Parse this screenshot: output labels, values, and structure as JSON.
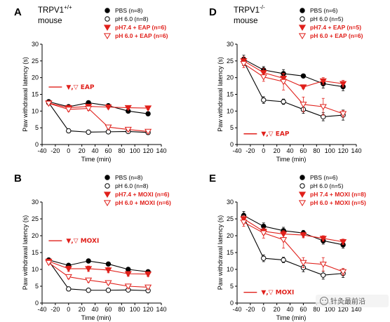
{
  "colors": {
    "black": "#000000",
    "red": "#e0201b",
    "wm_bg": "#f2f2f2"
  },
  "watermark_text": "针灸最前沿",
  "chart_data": [
    {
      "type": "line",
      "panel": "A",
      "title_line1": "TRPV1",
      "title_sup": "+/+",
      "title_line2": "mouse",
      "xlabel": "Time (min)",
      "ylabel": "Paw withdrawal latency (s)",
      "xlim": [
        -40,
        140
      ],
      "ylim": [
        0,
        30
      ],
      "x_ticks": [
        -40,
        -20,
        0,
        20,
        40,
        60,
        80,
        100,
        120,
        140
      ],
      "y_ticks": [
        0,
        5,
        10,
        15,
        20,
        25,
        30
      ],
      "x": [
        -30,
        0,
        30,
        60,
        90,
        120
      ],
      "treatment": {
        "symbols": "▼,▽",
        "label": "EAP",
        "x_start": -30,
        "x_end": -10
      },
      "legend_position": "top-right",
      "series": [
        {
          "name": "PBS (n=8)",
          "marker": "filled-circle",
          "color": "#000000",
          "values": [
            12.8,
            11.3,
            12.5,
            11.6,
            10.0,
            9.2
          ],
          "err": [
            0.5,
            0.5,
            0.5,
            0.5,
            0.5,
            0.6
          ]
        },
        {
          "name": "pH 6.0 (n=8)",
          "marker": "open-circle",
          "color": "#000000",
          "values": [
            12.5,
            4.1,
            3.7,
            3.8,
            3.9,
            3.6
          ],
          "err": [
            0.5,
            0.3,
            0.3,
            0.3,
            0.3,
            0.3
          ]
        },
        {
          "name": "pH7.4 + EAP (n=6)",
          "marker": "filled-triangle-down",
          "color": "#e0201b",
          "values": [
            12.4,
            11.0,
            11.4,
            11.2,
            11.0,
            10.9
          ],
          "err": [
            0.5,
            0.5,
            0.5,
            0.5,
            0.5,
            0.5
          ]
        },
        {
          "name": "pH 6.0 + EAP (n=6)",
          "marker": "open-triangle-down",
          "color": "#e0201b",
          "values": [
            12.3,
            10.5,
            10.8,
            5.2,
            4.5,
            3.9
          ],
          "err": [
            0.5,
            0.6,
            0.6,
            0.5,
            0.5,
            0.4
          ]
        }
      ]
    },
    {
      "type": "line",
      "panel": "D",
      "title_line1": "TRPV1",
      "title_sup": "-/-",
      "title_line2": "mouse",
      "xlabel": "Time (min)",
      "ylabel": "Paw withdrawal latency (s)",
      "xlim": [
        -40,
        140
      ],
      "ylim": [
        0,
        30
      ],
      "x_ticks": [
        -40,
        -20,
        0,
        20,
        40,
        60,
        80,
        100,
        120,
        140
      ],
      "y_ticks": [
        0,
        5,
        10,
        15,
        20,
        25,
        30
      ],
      "x": [
        -30,
        0,
        30,
        60,
        90,
        120
      ],
      "treatment": {
        "symbols": "▼,▽",
        "label": "EAP",
        "x_start": -30,
        "x_end": -10
      },
      "legend_position": "top-right",
      "series": [
        {
          "name": "PBS (n=6)",
          "marker": "filled-circle",
          "color": "#000000",
          "values": [
            25.5,
            22.3,
            21.2,
            20.5,
            18.2,
            17.3
          ],
          "err": [
            1.2,
            1.0,
            1.2,
            0.5,
            1.3,
            1.2
          ]
        },
        {
          "name": "pH 6.0 (n=5)",
          "marker": "open-circle",
          "color": "#000000",
          "values": [
            24.8,
            13.3,
            12.8,
            10.5,
            8.3,
            8.8
          ],
          "err": [
            1.2,
            1.0,
            0.8,
            1.2,
            1.2,
            1.5
          ]
        },
        {
          "name": "pH7.4 + EAP (n=5)",
          "marker": "filled-triangle-down",
          "color": "#e0201b",
          "values": [
            25.0,
            21.5,
            19.8,
            17.2,
            19.0,
            18.2
          ],
          "err": [
            1.2,
            1.2,
            1.2,
            0.5,
            1.0,
            1.0
          ]
        },
        {
          "name": "pH 6.0 + EAP (n=6)",
          "marker": "open-triangle-down",
          "color": "#e0201b",
          "values": [
            24.2,
            20.2,
            18.8,
            12.0,
            11.3,
            9.2
          ],
          "err": [
            1.2,
            1.3,
            2.5,
            2.2,
            2.5,
            1.0
          ]
        }
      ]
    },
    {
      "type": "line",
      "panel": "B",
      "xlabel": "Time (min)",
      "ylabel": "Paw withdrawal latency (s)",
      "xlim": [
        -40,
        140
      ],
      "ylim": [
        0,
        30
      ],
      "x_ticks": [
        -40,
        -20,
        0,
        20,
        40,
        60,
        80,
        100,
        120,
        140
      ],
      "y_ticks": [
        0,
        5,
        10,
        15,
        20,
        25,
        30
      ],
      "x": [
        -30,
        0,
        30,
        60,
        90,
        120
      ],
      "treatment": {
        "symbols": "▼,▽",
        "label": "MOXI",
        "x_start": -30,
        "x_end": -10
      },
      "legend_position": "top-right",
      "series": [
        {
          "name": "PBS (n=8)",
          "marker": "filled-circle",
          "color": "#000000",
          "values": [
            12.8,
            11.2,
            12.5,
            11.6,
            10.0,
            9.3
          ],
          "err": [
            0.5,
            0.5,
            0.5,
            0.5,
            0.5,
            0.5
          ]
        },
        {
          "name": "pH 6.0 (n=8)",
          "marker": "open-circle",
          "color": "#000000",
          "values": [
            12.5,
            4.2,
            3.8,
            3.8,
            3.9,
            3.7
          ],
          "err": [
            0.5,
            0.3,
            0.3,
            0.3,
            0.3,
            0.3
          ]
        },
        {
          "name": "pH7.4 + MOXI (n=6)",
          "marker": "filled-triangle-down",
          "color": "#e0201b",
          "values": [
            12.4,
            10.2,
            10.2,
            9.8,
            8.7,
            8.6
          ],
          "err": [
            0.5,
            0.8,
            0.8,
            0.8,
            0.7,
            0.7
          ]
        },
        {
          "name": "pH 6.0 + MOXI (n=6)",
          "marker": "open-triangle-down",
          "color": "#e0201b",
          "values": [
            12.0,
            7.8,
            6.8,
            6.0,
            5.0,
            4.7
          ],
          "err": [
            0.5,
            0.6,
            0.6,
            0.5,
            0.5,
            0.4
          ]
        }
      ]
    },
    {
      "type": "line",
      "panel": "E",
      "xlabel": "Time (min)",
      "ylabel": "Paw withdrawal latency (s)",
      "xlim": [
        -40,
        140
      ],
      "ylim": [
        0,
        30
      ],
      "x_ticks": [
        -40,
        -20,
        0,
        20,
        40,
        60,
        80,
        100,
        120,
        140
      ],
      "y_ticks": [
        0,
        5,
        10,
        15,
        20,
        25,
        30
      ],
      "x": [
        -30,
        0,
        30,
        60,
        90,
        120
      ],
      "treatment": {
        "symbols": "▼,▽",
        "label": "MOXI",
        "x_start": -30,
        "x_end": -10
      },
      "legend_position": "top-right",
      "series": [
        {
          "name": "PBS (n=6)",
          "marker": "filled-circle",
          "color": "#000000",
          "values": [
            26.0,
            22.8,
            21.5,
            20.8,
            18.5,
            17.3
          ],
          "err": [
            1.2,
            1.0,
            1.0,
            0.8,
            1.0,
            1.0
          ]
        },
        {
          "name": "pH 6.0 (n=5)",
          "marker": "open-circle",
          "color": "#000000",
          "values": [
            25.5,
            13.3,
            12.8,
            10.5,
            8.3,
            8.8
          ],
          "err": [
            1.2,
            1.0,
            0.8,
            1.2,
            1.2,
            1.2
          ]
        },
        {
          "name": "pH 7.4 + MOXI (n=8)",
          "marker": "filled-triangle-down",
          "color": "#e0201b",
          "values": [
            25.0,
            21.3,
            20.5,
            20.2,
            19.2,
            18.2
          ],
          "err": [
            1.0,
            1.0,
            1.0,
            0.8,
            0.8,
            0.8
          ]
        },
        {
          "name": "pH 6.0 + MOXI (n=5)",
          "marker": "open-triangle-down",
          "color": "#e0201b",
          "values": [
            24.0,
            20.8,
            18.8,
            12.0,
            11.5,
            9.3
          ],
          "err": [
            1.2,
            1.5,
            2.5,
            1.5,
            2.0,
            1.0
          ]
        }
      ]
    }
  ]
}
